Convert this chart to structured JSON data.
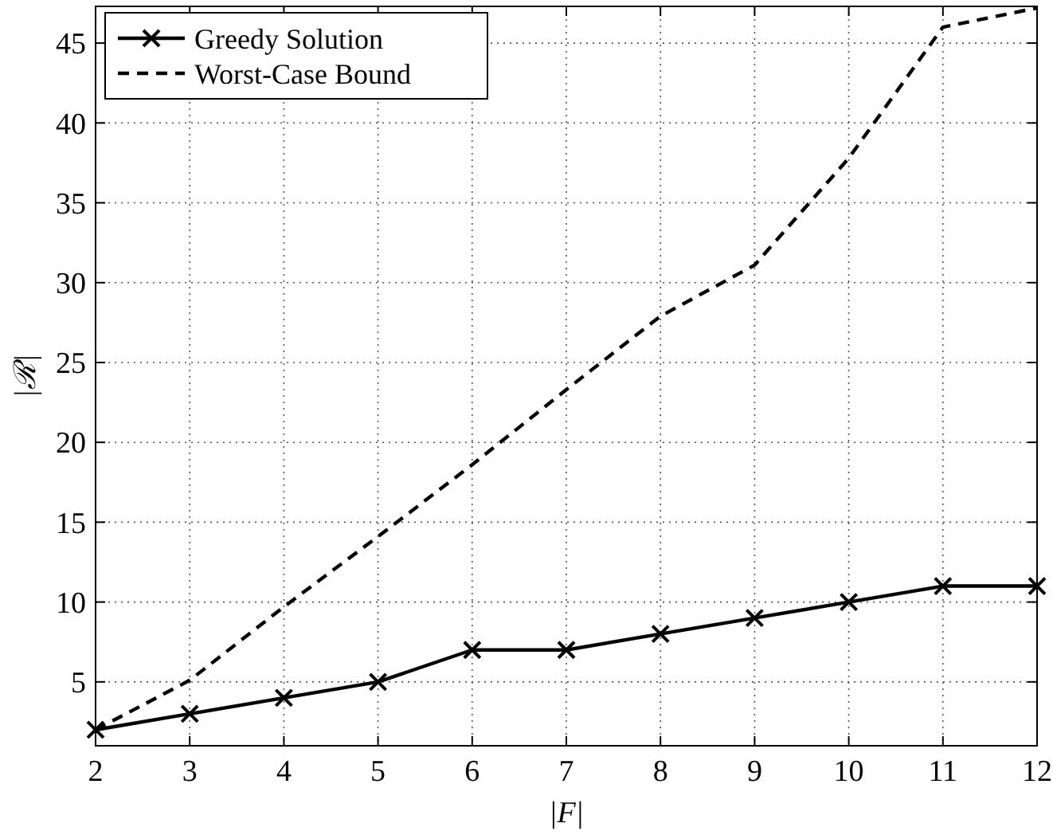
{
  "chart_data": {
    "type": "line",
    "xlabel": "|F|",
    "ylabel": "|ℛ|",
    "x": [
      2,
      3,
      4,
      5,
      6,
      7,
      8,
      9,
      10,
      11,
      12
    ],
    "series": [
      {
        "name": "Greedy Solution",
        "color": "#000000",
        "marker": "cross",
        "line_style": "solid",
        "values": [
          2,
          3,
          4,
          5,
          7,
          7,
          8,
          9,
          10,
          11,
          11
        ]
      },
      {
        "name": "Worst-Case Bound",
        "color": "#000000",
        "marker": "none",
        "line_style": "dashed",
        "values": [
          2,
          5.1,
          9.7,
          14.1,
          18.6,
          23.3,
          27.9,
          31.1,
          37.8,
          46,
          47.2
        ]
      }
    ],
    "xlim": [
      2,
      12
    ],
    "xticks": [
      2,
      3,
      4,
      5,
      6,
      7,
      8,
      9,
      10,
      11,
      12
    ],
    "ylim": [
      1,
      47.3
    ],
    "yticks": [
      5,
      10,
      15,
      20,
      25,
      30,
      35,
      40,
      45
    ],
    "grid": true,
    "legend": "top left"
  }
}
